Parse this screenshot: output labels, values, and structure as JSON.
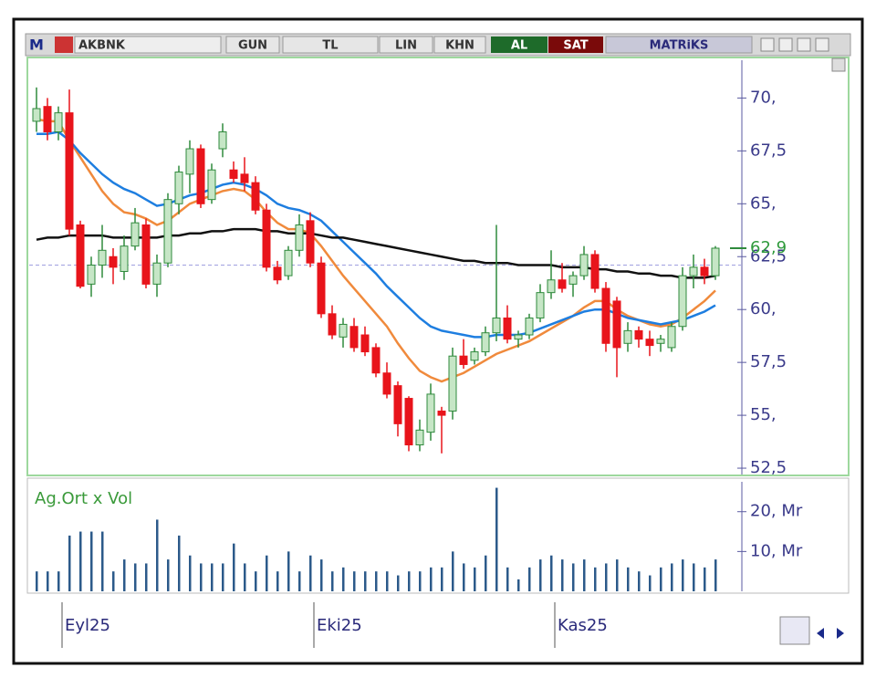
{
  "toolbar": {
    "logo": "M",
    "symbol": "AKBNK",
    "buttons": [
      "GUN",
      "TL",
      "LIN",
      "KHN"
    ],
    "buy": "AL",
    "sell": "SAT",
    "brand": "MATRiKS"
  },
  "chart_data": {
    "type": "candlestick",
    "categories": [
      null,
      null,
      "Eyl25",
      null,
      null,
      null,
      null,
      null,
      null,
      null,
      null,
      null,
      null,
      null,
      null,
      null,
      null,
      null,
      null,
      null,
      null,
      null,
      null,
      null,
      null,
      "Eki25",
      null,
      null,
      null,
      null,
      null,
      null,
      null,
      null,
      null,
      null,
      null,
      null,
      null,
      null,
      null,
      null,
      null,
      null,
      null,
      null,
      null,
      "Kas25",
      null,
      null,
      null,
      null,
      null,
      null,
      null,
      null,
      null,
      null,
      null,
      null,
      null,
      null,
      null
    ],
    "open": [
      68.9,
      69.6,
      68.4,
      69.3,
      64.0,
      61.2,
      62.1,
      62.5,
      61.8,
      63.0,
      64.0,
      61.2,
      62.2,
      65.0,
      66.4,
      67.6,
      65.2,
      67.6,
      66.6,
      66.4,
      66.0,
      64.7,
      62.0,
      61.6,
      62.8,
      64.2,
      62.2,
      59.8,
      58.7,
      59.2,
      58.8,
      58.2,
      57.0,
      56.4,
      55.8,
      53.6,
      54.2,
      55.2,
      55.2,
      57.8,
      57.6,
      58.0,
      58.9,
      59.6,
      58.6,
      58.8,
      59.6,
      60.8,
      61.4,
      61.2,
      61.6,
      62.6,
      61.0,
      60.4,
      58.4,
      59.0,
      58.6,
      58.4,
      58.2,
      59.2,
      61.6,
      62.0,
      61.6
    ],
    "high": [
      70.5,
      70.0,
      69.6,
      70.4,
      64.2,
      62.5,
      64.0,
      62.9,
      63.5,
      64.8,
      64.3,
      62.6,
      65.5,
      66.8,
      68.0,
      67.8,
      66.9,
      68.8,
      67.0,
      67.2,
      66.3,
      65.0,
      62.3,
      63.0,
      64.5,
      64.6,
      62.5,
      60.2,
      59.6,
      59.6,
      59.2,
      58.4,
      57.5,
      56.6,
      55.9,
      54.8,
      56.5,
      55.4,
      58.2,
      58.6,
      58.2,
      59.2,
      64.0,
      60.2,
      59.0,
      59.8,
      61.2,
      62.8,
      62.2,
      61.8,
      63.0,
      62.8,
      61.3,
      60.6,
      59.4,
      59.2,
      59.0,
      58.8,
      59.4,
      62.0,
      62.6,
      62.4,
      63.0
    ],
    "low": [
      68.4,
      68.0,
      68.0,
      63.5,
      61.0,
      60.6,
      61.5,
      61.2,
      61.4,
      62.8,
      61.0,
      60.6,
      62.0,
      64.5,
      65.5,
      64.8,
      65.0,
      67.2,
      66.0,
      65.6,
      64.5,
      61.8,
      61.2,
      61.4,
      62.5,
      62.0,
      59.6,
      58.6,
      58.2,
      58.0,
      57.8,
      56.8,
      55.8,
      54.0,
      53.3,
      53.3,
      53.8,
      53.2,
      54.8,
      57.2,
      57.4,
      57.8,
      58.5,
      58.4,
      58.2,
      58.6,
      59.4,
      60.5,
      60.8,
      60.6,
      61.4,
      60.8,
      58.0,
      56.8,
      58.0,
      58.2,
      57.8,
      58.0,
      58.0,
      59.0,
      61.0,
      61.2,
      61.4
    ],
    "close": [
      69.5,
      68.4,
      69.3,
      63.8,
      61.1,
      62.1,
      62.8,
      62.0,
      63.0,
      64.1,
      61.2,
      62.2,
      65.2,
      66.5,
      67.6,
      65.0,
      66.6,
      68.4,
      66.2,
      66.0,
      64.7,
      62.0,
      61.4,
      62.8,
      64.0,
      62.2,
      59.8,
      58.8,
      59.3,
      58.2,
      58.0,
      57.0,
      56.0,
      54.6,
      53.6,
      54.3,
      56.0,
      55.0,
      57.8,
      57.4,
      58.0,
      58.9,
      59.6,
      58.6,
      58.8,
      59.6,
      60.8,
      61.4,
      61.0,
      61.6,
      62.6,
      61.0,
      58.4,
      58.2,
      59.0,
      58.6,
      58.3,
      58.6,
      59.2,
      61.6,
      62.0,
      61.6,
      62.9
    ],
    "up_color": "#c6e6c6",
    "up_edge": "#2f8a3c",
    "down_color": "#e8141b",
    "moving_averages": [
      {
        "color": "#f08a3c",
        "values": [
          69.0,
          68.9,
          68.9,
          68.0,
          67.2,
          66.4,
          65.6,
          65.0,
          64.6,
          64.5,
          64.3,
          64.0,
          64.2,
          64.6,
          65.0,
          65.2,
          65.4,
          65.6,
          65.7,
          65.6,
          65.2,
          64.6,
          64.1,
          63.8,
          63.8,
          63.6,
          63.0,
          62.3,
          61.6,
          61.0,
          60.4,
          59.8,
          59.2,
          58.4,
          57.7,
          57.1,
          56.8,
          56.6,
          56.8,
          57.0,
          57.3,
          57.6,
          57.9,
          58.1,
          58.3,
          58.5,
          58.8,
          59.1,
          59.4,
          59.7,
          60.1,
          60.4,
          60.4,
          60.0,
          59.7,
          59.5,
          59.3,
          59.2,
          59.3,
          59.6,
          60.0,
          60.4,
          60.9
        ]
      },
      {
        "color": "#1e7ee0",
        "values": [
          68.3,
          68.3,
          68.4,
          68.0,
          67.4,
          66.9,
          66.4,
          66.0,
          65.7,
          65.5,
          65.2,
          64.9,
          65.0,
          65.2,
          65.4,
          65.5,
          65.7,
          65.9,
          66.0,
          65.9,
          65.7,
          65.4,
          65.0,
          64.8,
          64.7,
          64.5,
          64.2,
          63.7,
          63.2,
          62.7,
          62.2,
          61.7,
          61.1,
          60.6,
          60.1,
          59.6,
          59.2,
          59.0,
          58.9,
          58.8,
          58.7,
          58.7,
          58.8,
          58.8,
          58.8,
          58.9,
          59.1,
          59.3,
          59.5,
          59.7,
          59.9,
          60.0,
          60.0,
          59.8,
          59.6,
          59.5,
          59.4,
          59.3,
          59.4,
          59.5,
          59.7,
          59.9,
          60.2
        ]
      },
      {
        "color": "#111111",
        "values": [
          63.3,
          63.4,
          63.4,
          63.5,
          63.5,
          63.5,
          63.5,
          63.4,
          63.4,
          63.4,
          63.4,
          63.4,
          63.5,
          63.5,
          63.6,
          63.6,
          63.7,
          63.7,
          63.8,
          63.8,
          63.8,
          63.7,
          63.7,
          63.6,
          63.6,
          63.6,
          63.5,
          63.4,
          63.4,
          63.3,
          63.2,
          63.1,
          63.0,
          62.9,
          62.8,
          62.7,
          62.6,
          62.5,
          62.4,
          62.3,
          62.3,
          62.2,
          62.2,
          62.2,
          62.1,
          62.1,
          62.1,
          62.1,
          62.0,
          62.0,
          62.0,
          61.9,
          61.9,
          61.8,
          61.8,
          61.7,
          61.7,
          61.6,
          61.6,
          61.5,
          61.5,
          61.5,
          61.6
        ]
      }
    ],
    "ylim": [
      52.2,
      71.7
    ],
    "yticks": [
      {
        "value": 70,
        "label": "70,"
      },
      {
        "value": 67.5,
        "label": "67,5"
      },
      {
        "value": 65,
        "label": "65,"
      },
      {
        "value": 62.5,
        "label": "62,5"
      },
      {
        "value": 60,
        "label": "60,"
      },
      {
        "value": 57.5,
        "label": "57,5"
      },
      {
        "value": 55,
        "label": "55,"
      },
      {
        "value": 52.5,
        "label": "52,5"
      }
    ],
    "last_price": {
      "value": 62.9,
      "label": "62,9"
    },
    "dashed_level": 62.1,
    "volume": {
      "label": "Ag.Ort x Vol",
      "color": "#2c5a8a",
      "values": [
        5,
        5,
        5,
        14,
        15,
        15,
        15,
        5,
        8,
        7,
        7,
        18,
        8,
        14,
        9,
        7,
        7,
        7,
        12,
        7,
        5,
        9,
        5,
        10,
        5,
        9,
        8,
        5,
        6,
        5,
        5,
        5,
        5,
        4,
        5,
        5,
        6,
        6,
        10,
        7,
        6,
        9,
        26,
        6,
        3,
        6,
        8,
        9,
        8,
        7,
        8,
        6,
        7,
        8,
        6,
        5,
        4,
        6,
        7,
        8,
        7,
        6,
        8
      ],
      "ylim": [
        0,
        27.5
      ],
      "yticks": [
        {
          "value": 20,
          "label": "20, Mr"
        },
        {
          "value": 10,
          "label": "10, Mr"
        }
      ]
    }
  }
}
